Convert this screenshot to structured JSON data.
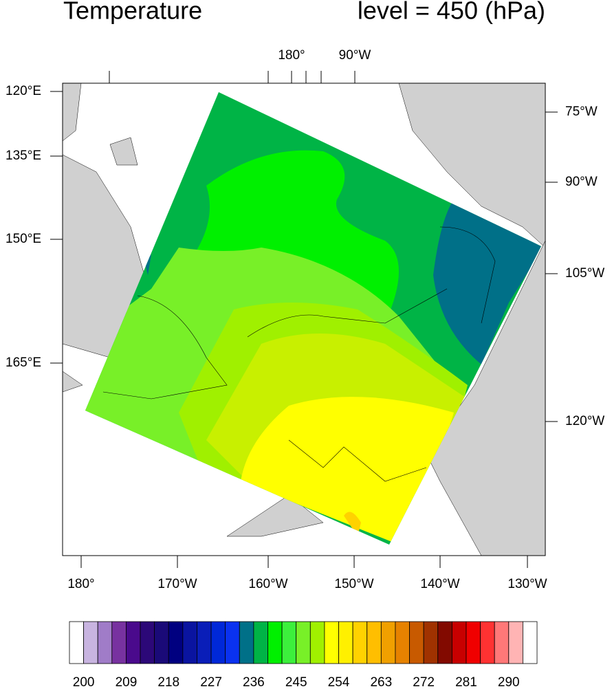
{
  "title": "Temperature",
  "subtitle": "level = 450 (hPa)",
  "map": {
    "top_labels": [
      "180°",
      "90°W"
    ],
    "bottom_labels": [
      "180°",
      "170°W",
      "160°W",
      "150°W",
      "140°W",
      "130°W"
    ],
    "left_labels": [
      "120°E",
      "135°E",
      "150°E",
      "165°E"
    ],
    "right_labels": [
      "75°W",
      "90°W",
      "105°W",
      "120°W"
    ]
  },
  "colorbar": {
    "labels": [
      200,
      209,
      218,
      227,
      236,
      245,
      254,
      263,
      272,
      281,
      290
    ],
    "colors": [
      "#ffffff",
      "#c8b4e0",
      "#a07cc8",
      "#7832a0",
      "#4a0a8c",
      "#2c0878",
      "#1a0a78",
      "#000080",
      "#0a14a0",
      "#0a1eb8",
      "#0028d8",
      "#0a32f0",
      "#007088",
      "#00b446",
      "#00f000",
      "#3cf03c",
      "#78f028",
      "#a0f000",
      "#ffff00",
      "#fff000",
      "#ffd200",
      "#ffbe00",
      "#f0a000",
      "#e68200",
      "#c85a00",
      "#a03200",
      "#820a00",
      "#c80000",
      "#f00000",
      "#ff3232",
      "#ff7878",
      "#ffb4b4",
      "#ffffff"
    ]
  }
}
